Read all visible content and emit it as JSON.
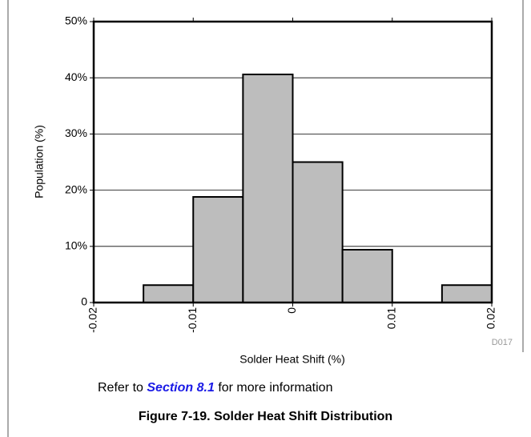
{
  "chart_data": {
    "type": "histogram",
    "bins": [
      -0.02,
      -0.015,
      -0.01,
      -0.005,
      0,
      0.005,
      0.01,
      0.015,
      0.02
    ],
    "values": [
      0,
      3.1,
      18.8,
      40.6,
      25,
      9.4,
      0,
      3.1
    ],
    "color": "#bdbdbd",
    "xlim": [
      -0.02,
      0.02
    ],
    "xticks": [
      -0.02,
      -0.01,
      0,
      0.01,
      0.02
    ],
    "ylim": [
      0,
      50
    ],
    "yticks": [
      0,
      {
        "value": 10,
        "label": "10%"
      },
      {
        "value": 20,
        "label": "20%"
      },
      {
        "value": 30,
        "label": "30%"
      },
      {
        "value": 40,
        "label": "40%"
      },
      {
        "value": 50,
        "label": "50%"
      }
    ],
    "grid": true,
    "x_label": "Solder Heat Shift (%)",
    "y_label": "Population (%)",
    "code": "D017"
  },
  "note": {
    "before": "Refer to",
    "link": "Section 8.1",
    "after": "for more information"
  },
  "caption": "Figure 7-19. Solder Heat Shift Distribution"
}
